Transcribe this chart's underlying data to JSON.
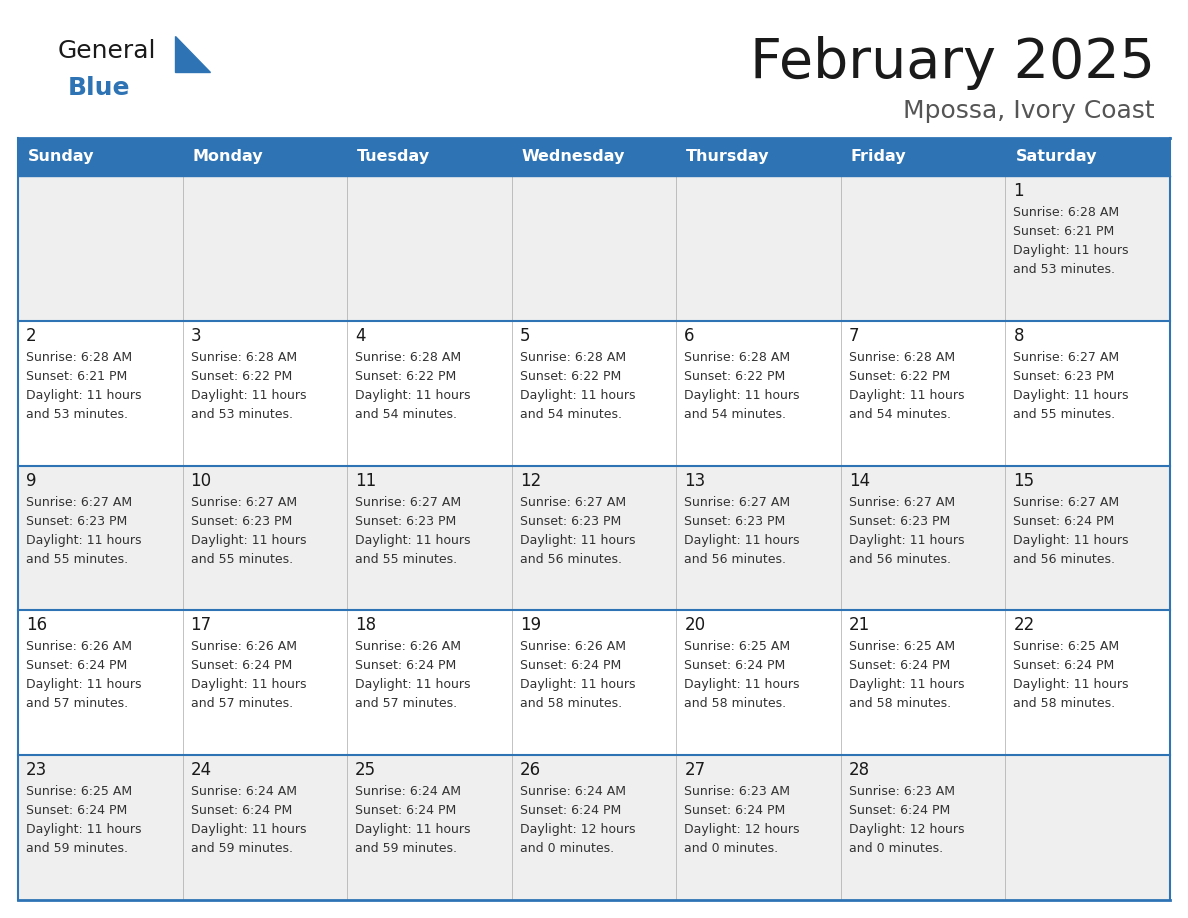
{
  "title": "February 2025",
  "subtitle": "Mpossa, Ivory Coast",
  "header_bg": "#2E74B5",
  "header_text_color": "#FFFFFF",
  "cell_bg_light": "#EFEFEF",
  "cell_bg_white": "#FFFFFF",
  "border_color": "#2E74B5",
  "text_color": "#333333",
  "days_of_week": [
    "Sunday",
    "Monday",
    "Tuesday",
    "Wednesday",
    "Thursday",
    "Friday",
    "Saturday"
  ],
  "calendar_data": [
    [
      {
        "day": null,
        "sunrise": null,
        "sunset": null,
        "daylight": null
      },
      {
        "day": null,
        "sunrise": null,
        "sunset": null,
        "daylight": null
      },
      {
        "day": null,
        "sunrise": null,
        "sunset": null,
        "daylight": null
      },
      {
        "day": null,
        "sunrise": null,
        "sunset": null,
        "daylight": null
      },
      {
        "day": null,
        "sunrise": null,
        "sunset": null,
        "daylight": null
      },
      {
        "day": null,
        "sunrise": null,
        "sunset": null,
        "daylight": null
      },
      {
        "day": 1,
        "sunrise": "6:28 AM",
        "sunset": "6:21 PM",
        "daylight": "11 hours and 53 minutes."
      }
    ],
    [
      {
        "day": 2,
        "sunrise": "6:28 AM",
        "sunset": "6:21 PM",
        "daylight": "11 hours and 53 minutes."
      },
      {
        "day": 3,
        "sunrise": "6:28 AM",
        "sunset": "6:22 PM",
        "daylight": "11 hours and 53 minutes."
      },
      {
        "day": 4,
        "sunrise": "6:28 AM",
        "sunset": "6:22 PM",
        "daylight": "11 hours and 54 minutes."
      },
      {
        "day": 5,
        "sunrise": "6:28 AM",
        "sunset": "6:22 PM",
        "daylight": "11 hours and 54 minutes."
      },
      {
        "day": 6,
        "sunrise": "6:28 AM",
        "sunset": "6:22 PM",
        "daylight": "11 hours and 54 minutes."
      },
      {
        "day": 7,
        "sunrise": "6:28 AM",
        "sunset": "6:22 PM",
        "daylight": "11 hours and 54 minutes."
      },
      {
        "day": 8,
        "sunrise": "6:27 AM",
        "sunset": "6:23 PM",
        "daylight": "11 hours and 55 minutes."
      }
    ],
    [
      {
        "day": 9,
        "sunrise": "6:27 AM",
        "sunset": "6:23 PM",
        "daylight": "11 hours and 55 minutes."
      },
      {
        "day": 10,
        "sunrise": "6:27 AM",
        "sunset": "6:23 PM",
        "daylight": "11 hours and 55 minutes."
      },
      {
        "day": 11,
        "sunrise": "6:27 AM",
        "sunset": "6:23 PM",
        "daylight": "11 hours and 55 minutes."
      },
      {
        "day": 12,
        "sunrise": "6:27 AM",
        "sunset": "6:23 PM",
        "daylight": "11 hours and 56 minutes."
      },
      {
        "day": 13,
        "sunrise": "6:27 AM",
        "sunset": "6:23 PM",
        "daylight": "11 hours and 56 minutes."
      },
      {
        "day": 14,
        "sunrise": "6:27 AM",
        "sunset": "6:23 PM",
        "daylight": "11 hours and 56 minutes."
      },
      {
        "day": 15,
        "sunrise": "6:27 AM",
        "sunset": "6:24 PM",
        "daylight": "11 hours and 56 minutes."
      }
    ],
    [
      {
        "day": 16,
        "sunrise": "6:26 AM",
        "sunset": "6:24 PM",
        "daylight": "11 hours and 57 minutes."
      },
      {
        "day": 17,
        "sunrise": "6:26 AM",
        "sunset": "6:24 PM",
        "daylight": "11 hours and 57 minutes."
      },
      {
        "day": 18,
        "sunrise": "6:26 AM",
        "sunset": "6:24 PM",
        "daylight": "11 hours and 57 minutes."
      },
      {
        "day": 19,
        "sunrise": "6:26 AM",
        "sunset": "6:24 PM",
        "daylight": "11 hours and 58 minutes."
      },
      {
        "day": 20,
        "sunrise": "6:25 AM",
        "sunset": "6:24 PM",
        "daylight": "11 hours and 58 minutes."
      },
      {
        "day": 21,
        "sunrise": "6:25 AM",
        "sunset": "6:24 PM",
        "daylight": "11 hours and 58 minutes."
      },
      {
        "day": 22,
        "sunrise": "6:25 AM",
        "sunset": "6:24 PM",
        "daylight": "11 hours and 58 minutes."
      }
    ],
    [
      {
        "day": 23,
        "sunrise": "6:25 AM",
        "sunset": "6:24 PM",
        "daylight": "11 hours and 59 minutes."
      },
      {
        "day": 24,
        "sunrise": "6:24 AM",
        "sunset": "6:24 PM",
        "daylight": "11 hours and 59 minutes."
      },
      {
        "day": 25,
        "sunrise": "6:24 AM",
        "sunset": "6:24 PM",
        "daylight": "11 hours and 59 minutes."
      },
      {
        "day": 26,
        "sunrise": "6:24 AM",
        "sunset": "6:24 PM",
        "daylight": "12 hours and 0 minutes."
      },
      {
        "day": 27,
        "sunrise": "6:23 AM",
        "sunset": "6:24 PM",
        "daylight": "12 hours and 0 minutes."
      },
      {
        "day": 28,
        "sunrise": "6:23 AM",
        "sunset": "6:24 PM",
        "daylight": "12 hours and 0 minutes."
      },
      {
        "day": null,
        "sunrise": null,
        "sunset": null,
        "daylight": null
      }
    ]
  ],
  "logo_general_color": "#1a1a1a",
  "logo_blue_color": "#2E74B5",
  "logo_triangle_color": "#2E74B5"
}
